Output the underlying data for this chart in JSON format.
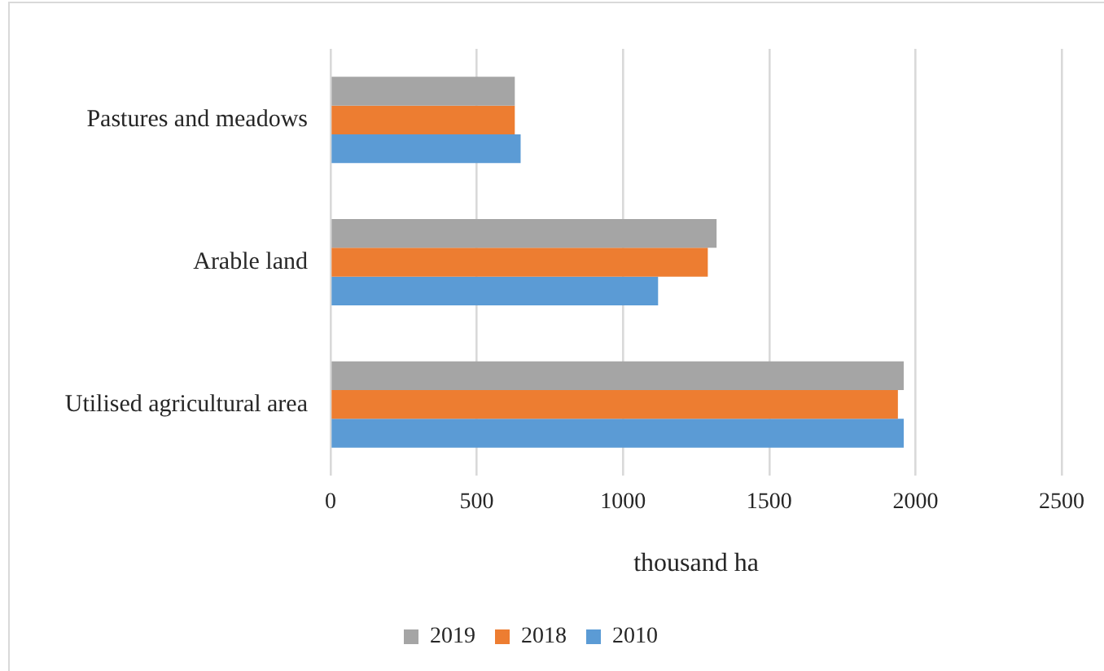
{
  "chart_data": {
    "type": "bar",
    "orientation": "horizontal",
    "categories": [
      "Pastures and meadows",
      "Arable land",
      "Utilised agricultural area"
    ],
    "series": [
      {
        "name": "2019",
        "color": "#a5a5a5",
        "values": [
          630,
          1320,
          1960
        ]
      },
      {
        "name": "2018",
        "color": "#ed7d31",
        "values": [
          630,
          1290,
          1940
        ]
      },
      {
        "name": "2010",
        "color": "#5b9bd5",
        "values": [
          650,
          1120,
          1960
        ]
      }
    ],
    "xlabel": "thousand ha",
    "xlim": [
      0,
      2500
    ],
    "xticks": [
      0,
      500,
      1000,
      1500,
      2000,
      2500
    ],
    "grid": "x",
    "legend": "bottom"
  }
}
